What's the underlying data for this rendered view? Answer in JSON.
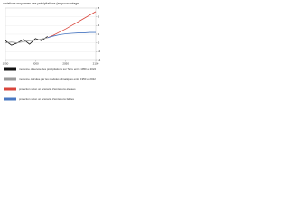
{
  "chart_data": {
    "type": "line",
    "title": "variations moyennes des précipitations (en pourcentage)",
    "x": [
      1950,
      1960,
      1970,
      1980,
      1990,
      2000,
      2010,
      2020,
      2030,
      2040,
      2050,
      2060,
      2070,
      2080,
      2090,
      2100
    ],
    "series": [
      {
        "name": "moyenne observée des précipitations sur Terre entre 1950 et 2022",
        "color": "#111111",
        "values": [
          0.5,
          -0.5,
          0,
          0.8,
          -0.3,
          1,
          0.5,
          1.5,
          null,
          null,
          null,
          null,
          null,
          null,
          null,
          null
        ]
      },
      {
        "name": "moyenne calculée par les modèles climatiques entre 1950 et 2022",
        "color": "#9a9a9a",
        "values": [
          0,
          0.2,
          0,
          0.3,
          0.5,
          0.6,
          0.9,
          1.2,
          null,
          null,
          null,
          null,
          null,
          null,
          null,
          null
        ]
      },
      {
        "name": "projection selon un scénario d'émissions élevées",
        "color": "#d9453b",
        "values": [
          null,
          null,
          null,
          null,
          null,
          null,
          null,
          1.2,
          1.8,
          2.5,
          3.2,
          4,
          4.8,
          5.6,
          6.4,
          7.2
        ]
      },
      {
        "name": "projection selon un scénario d'émissions faibles",
        "color": "#4a78c2",
        "values": [
          null,
          null,
          null,
          null,
          null,
          null,
          null,
          1.2,
          1.6,
          1.9,
          2.1,
          2.2,
          2.3,
          2.3,
          2.4,
          2.4
        ]
      }
    ],
    "xlim": [
      1950,
      2100
    ],
    "xticks": [
      1950,
      2000,
      2050,
      2100
    ],
    "ylim": [
      -4,
      8
    ],
    "yticks": [
      -4,
      -2,
      0,
      2,
      4,
      6,
      8
    ],
    "grid": true
  }
}
